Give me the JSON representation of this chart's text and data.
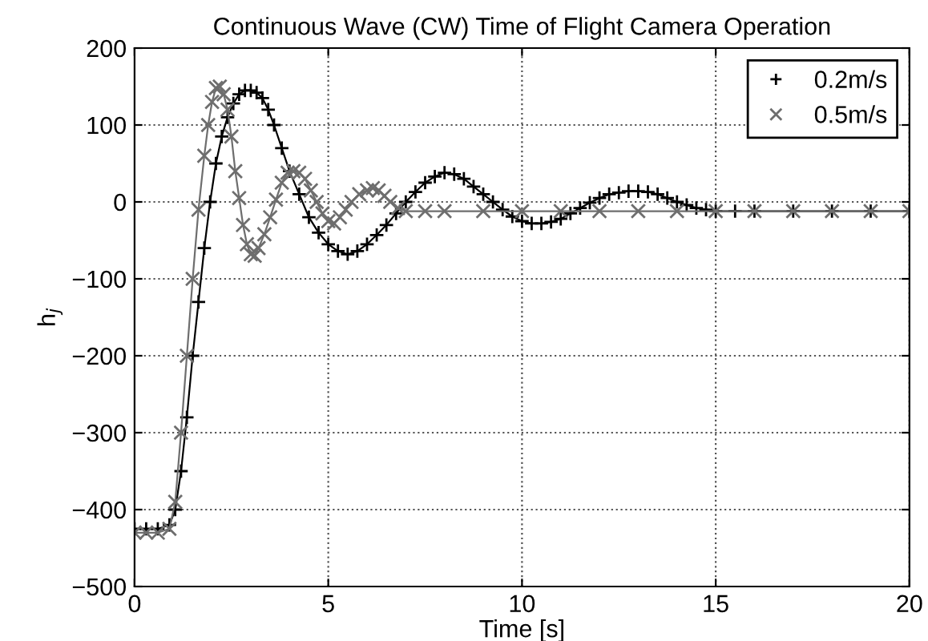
{
  "chart_data": {
    "type": "line",
    "title": "Continuous Wave (CW) Time of Flight Camera Operation",
    "xlabel": "Time [s]",
    "ylabel": "h$_{j}$",
    "xlim": [
      0,
      20
    ],
    "ylim": [
      -500,
      200
    ],
    "xticks": [
      0,
      5,
      10,
      15,
      20
    ],
    "yticks": [
      -500,
      -400,
      -300,
      -200,
      -100,
      0,
      100,
      200
    ],
    "grid": true,
    "legend": "top right",
    "line_style": "solid",
    "series": [
      {
        "name": "0.2m/s",
        "color": "#000000",
        "marker": "cross",
        "x": [
          0,
          0.3,
          0.6,
          0.9,
          1.05,
          1.2,
          1.35,
          1.5,
          1.65,
          1.8,
          1.95,
          2.1,
          2.25,
          2.4,
          2.55,
          2.7,
          2.85,
          3.0,
          3.15,
          3.3,
          3.45,
          3.6,
          3.8,
          4.0,
          4.25,
          4.5,
          4.75,
          5.0,
          5.25,
          5.5,
          5.75,
          6.0,
          6.25,
          6.5,
          6.75,
          7.0,
          7.25,
          7.5,
          7.75,
          8.0,
          8.25,
          8.5,
          8.75,
          9.0,
          9.25,
          9.5,
          9.75,
          10.0,
          10.25,
          10.5,
          10.75,
          11.0,
          11.25,
          11.5,
          11.75,
          12.0,
          12.25,
          12.5,
          12.75,
          13.0,
          13.25,
          13.5,
          13.75,
          14.0,
          14.25,
          14.5,
          14.75,
          15.0,
          15.5,
          16.0,
          17.0,
          18.0,
          19.0,
          20.0
        ],
        "values": [
          -425,
          -425,
          -425,
          -420,
          -400,
          -350,
          -280,
          -200,
          -130,
          -60,
          0,
          50,
          85,
          110,
          128,
          140,
          145,
          145,
          142,
          135,
          120,
          100,
          70,
          40,
          10,
          -20,
          -40,
          -55,
          -64,
          -68,
          -64,
          -55,
          -43,
          -30,
          -15,
          0,
          13,
          25,
          33,
          38,
          36,
          30,
          20,
          10,
          0,
          -10,
          -19,
          -25,
          -28,
          -28,
          -26,
          -22,
          -15,
          -8,
          -1,
          5,
          10,
          12,
          14,
          14,
          13,
          10,
          5,
          0,
          -4,
          -8,
          -10,
          -12,
          -12,
          -12,
          -12,
          -12,
          -12,
          -12
        ]
      },
      {
        "name": "0.5m/s",
        "color": "#6e6e6e",
        "marker": "x",
        "x": [
          0,
          0.3,
          0.6,
          0.9,
          1.05,
          1.2,
          1.35,
          1.5,
          1.65,
          1.8,
          1.9,
          2.0,
          2.1,
          2.2,
          2.3,
          2.4,
          2.5,
          2.6,
          2.7,
          2.8,
          2.9,
          3.0,
          3.1,
          3.2,
          3.35,
          3.5,
          3.65,
          3.8,
          3.95,
          4.1,
          4.25,
          4.4,
          4.55,
          4.7,
          4.85,
          5.0,
          5.15,
          5.3,
          5.45,
          5.6,
          5.8,
          6.0,
          6.15,
          6.3,
          6.45,
          6.6,
          6.8,
          7.0,
          7.5,
          8,
          9,
          10,
          11,
          12,
          13,
          14,
          15,
          16,
          17,
          18,
          19,
          20
        ],
        "values": [
          -430,
          -430,
          -430,
          -425,
          -390,
          -300,
          -200,
          -100,
          -10,
          60,
          100,
          130,
          148,
          150,
          140,
          120,
          85,
          40,
          5,
          -30,
          -55,
          -68,
          -70,
          -60,
          -42,
          -20,
          3,
          25,
          38,
          40,
          38,
          30,
          15,
          0,
          -15,
          -25,
          -28,
          -20,
          -10,
          0,
          10,
          15,
          18,
          15,
          8,
          0,
          -8,
          -12,
          -12,
          -12,
          -12,
          -12,
          -12,
          -12,
          -12,
          -12,
          -12,
          -12,
          -12,
          -12,
          -12,
          -12
        ]
      }
    ]
  }
}
